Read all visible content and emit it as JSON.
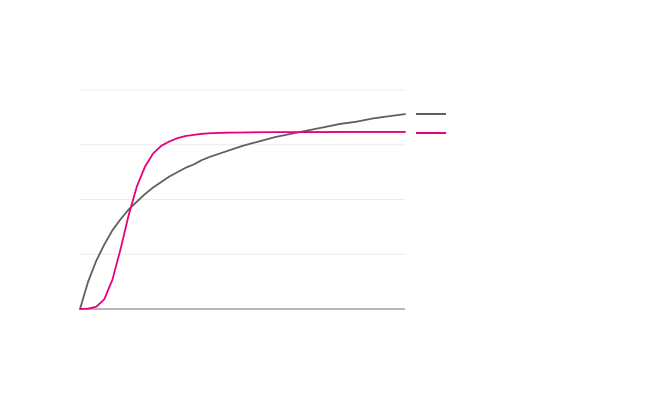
{
  "chart_data": {
    "type": "line",
    "title": "",
    "xlabel": "",
    "ylabel": "",
    "xlim": [
      0,
      10
    ],
    "ylim": [
      0,
      2
    ],
    "grid": true,
    "legend_position": "right",
    "x": [
      0,
      0.25,
      0.5,
      0.75,
      1,
      1.25,
      1.5,
      1.75,
      2,
      2.25,
      2.5,
      2.75,
      3,
      3.25,
      3.5,
      3.75,
      4,
      4.5,
      5,
      5.5,
      6,
      6.5,
      7,
      7.5,
      8,
      8.5,
      9,
      9.5,
      10
    ],
    "series": [
      {
        "color": "#5f5f5f",
        "values": [
          0,
          0.25,
          0.44,
          0.59,
          0.72,
          0.82,
          0.91,
          0.98,
          1.05,
          1.11,
          1.16,
          1.21,
          1.25,
          1.29,
          1.32,
          1.36,
          1.39,
          1.44,
          1.49,
          1.53,
          1.57,
          1.6,
          1.63,
          1.66,
          1.69,
          1.71,
          1.74,
          1.76,
          1.78
        ]
      },
      {
        "color": "#e6007e",
        "values": [
          0,
          0.003,
          0.02,
          0.09,
          0.27,
          0.55,
          0.86,
          1.12,
          1.3,
          1.42,
          1.49,
          1.53,
          1.56,
          1.58,
          1.59,
          1.6,
          1.605,
          1.61,
          1.612,
          1.614,
          1.615,
          1.615,
          1.616,
          1.616,
          1.617,
          1.617,
          1.617,
          1.617,
          1.617
        ]
      }
    ]
  }
}
